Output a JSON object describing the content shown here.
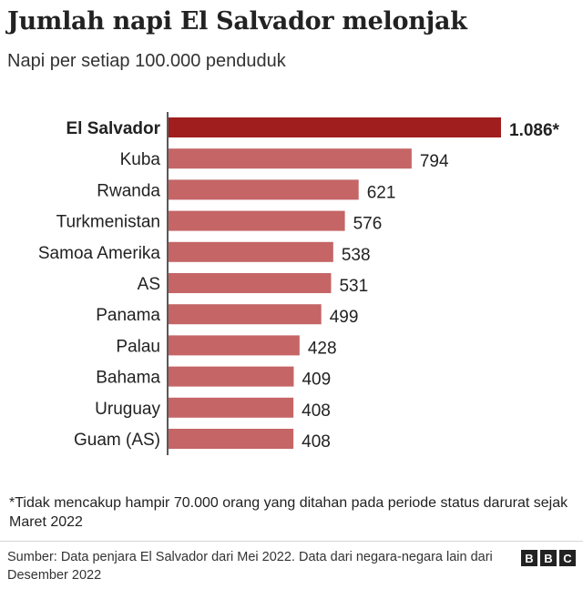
{
  "header": {
    "title": "Jumlah napi El Salvador melonjak",
    "subtitle": "Napi per setiap 100.000 penduduk"
  },
  "chart_data": {
    "type": "bar",
    "orientation": "horizontal",
    "categories": [
      "El Salvador",
      "Kuba",
      "Rwanda",
      "Turkmenistan",
      "Samoa Amerika",
      "AS",
      "Panama",
      "Palau",
      "Bahama",
      "Uruguay",
      "Guam (AS)"
    ],
    "values": [
      1086,
      794,
      621,
      576,
      538,
      531,
      499,
      428,
      409,
      408,
      408
    ],
    "value_labels": [
      "1.086*",
      "794",
      "621",
      "576",
      "538",
      "531",
      "499",
      "428",
      "409",
      "408",
      "408"
    ],
    "highlight_index": 0,
    "colors": {
      "highlight": "#a01e1e",
      "bar": "#c56566",
      "axis": "#222222"
    },
    "grid": false,
    "xlim": [
      0,
      1086
    ]
  },
  "footnote": "*Tidak mencakup hampir 70.000 orang yang ditahan pada periode status darurat sejak Maret 2022",
  "source": "Sumber: Data penjara El Salvador dari Mei 2022. Data dari negara-negara lain dari Desember 2022",
  "logo": {
    "letters": [
      "B",
      "B",
      "C"
    ],
    "color": "#222222"
  }
}
